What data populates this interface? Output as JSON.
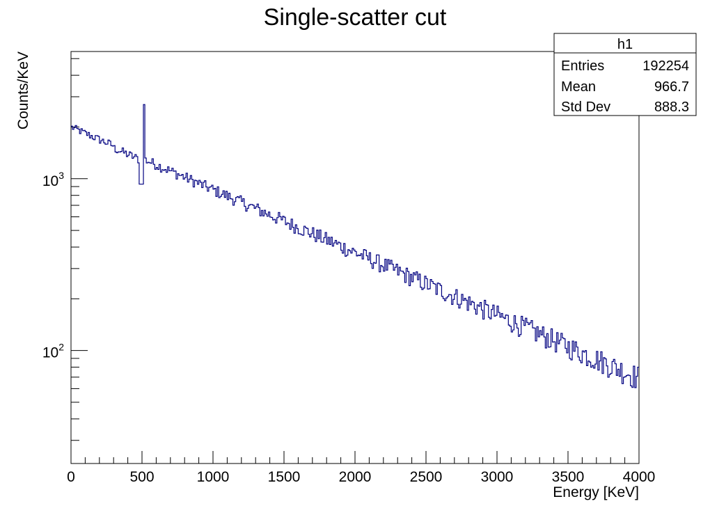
{
  "chart_data": {
    "type": "histogram",
    "title": "Single-scatter cut",
    "xlabel": "Energy [KeV]",
    "ylabel": "Counts/KeV",
    "xlim": [
      0,
      4000
    ],
    "ylim": [
      22,
      5500
    ],
    "yscale": "log",
    "grid": false,
    "line_color": "#000080",
    "x_ticks": [
      0,
      500,
      1000,
      1500,
      2000,
      2500,
      3000,
      3500,
      4000
    ],
    "x_tick_labels": [
      "0",
      "500",
      "1000",
      "1500",
      "2000",
      "2500",
      "3000",
      "3500",
      "4000"
    ],
    "y_ticks": [
      100,
      1000
    ],
    "y_tick_labels": [
      {
        "base": "10",
        "exp": "2"
      },
      {
        "base": "10",
        "exp": "3"
      }
    ],
    "bin_width": 10,
    "model": {
      "a0": 2000,
      "tau": 1190,
      "peak_energy": 511,
      "peak_value": 2700,
      "pre_peak_dip": 930
    },
    "stats": {
      "name": "h1",
      "rows": [
        {
          "label": "Entries",
          "value": "192254"
        },
        {
          "label": "Mean",
          "value": "966.7"
        },
        {
          "label": "Std Dev",
          "value": "888.3"
        }
      ]
    }
  }
}
